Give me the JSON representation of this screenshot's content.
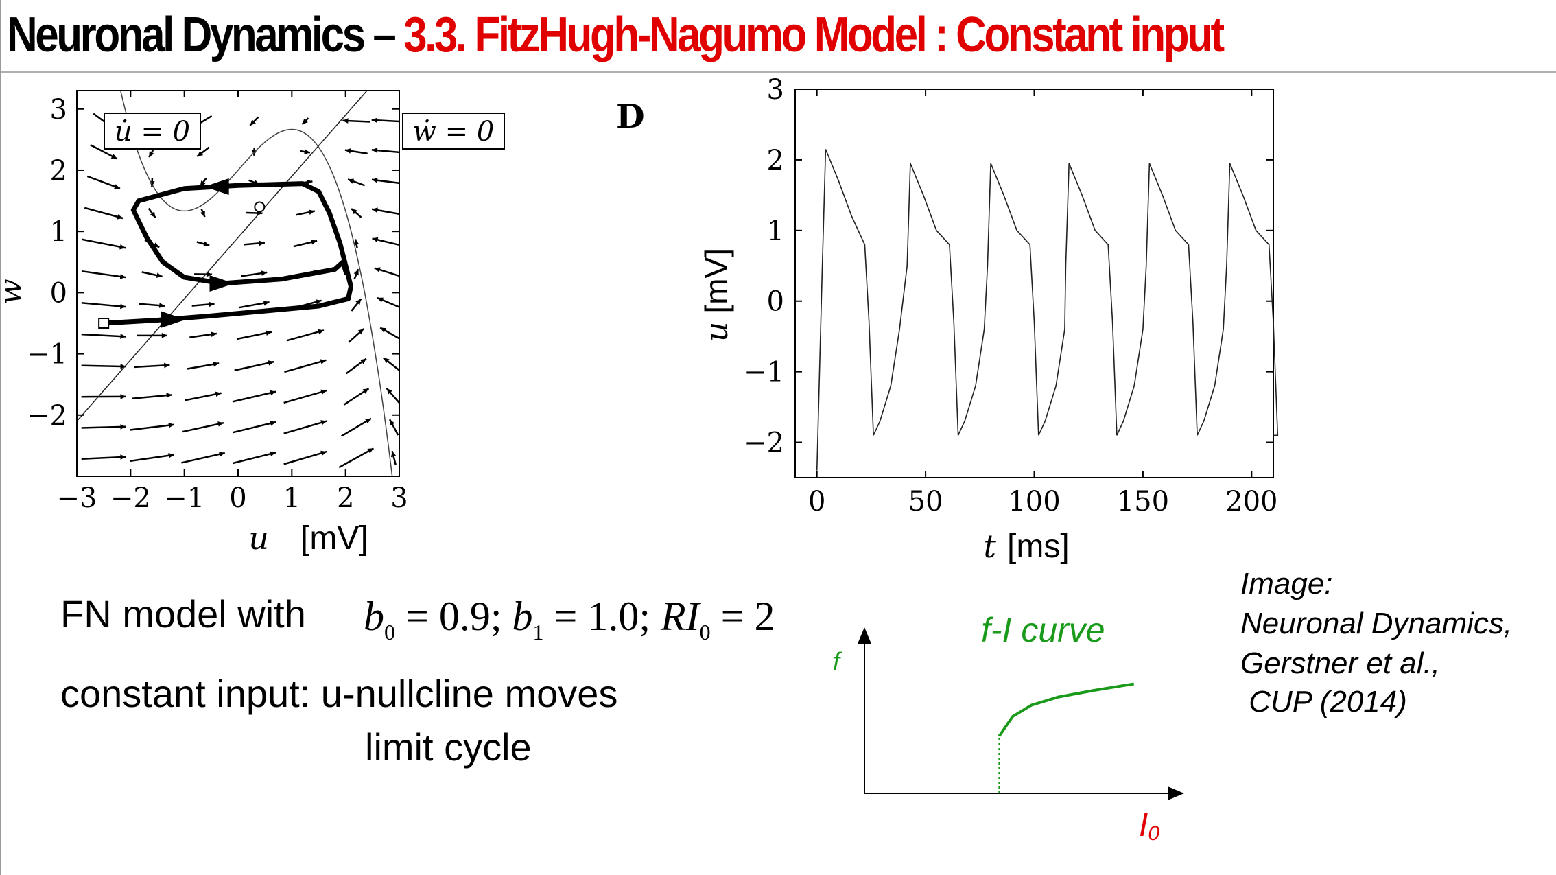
{
  "title": {
    "prefix": "Neuronal Dynamics – ",
    "section": "3.3.  FitzHugh-Nagumo Model : Constant input"
  },
  "colors": {
    "title_red": "#e00000",
    "curve_green": "#1a9a1a",
    "io_red": "#e00000"
  },
  "panel_label": "D",
  "body": {
    "line1_prefix": "FN model with",
    "line2": "constant input: u-nullcline moves",
    "line3": "limit cycle"
  },
  "image_credit": [
    "Image:",
    "Neuronal Dynamics,",
    "Gerstner et al.,",
    " CUP (2014)"
  ],
  "chart_data": [
    {
      "type": "line",
      "name": "phase-plane",
      "xlabel_unit": "[mV]",
      "xlim": [
        -3,
        3
      ],
      "ylim": [
        -3,
        3.3
      ],
      "xticks": [
        -3,
        -2,
        -1,
        0,
        1,
        2,
        3
      ],
      "yticks": [
        -2,
        -1,
        0,
        1,
        2,
        3
      ],
      "tick_labels_x": [
        "−3",
        "−2",
        "−1",
        "0",
        "1",
        "2",
        "3"
      ],
      "tick_labels_y": [
        "−2",
        "−1",
        "0",
        "1",
        "2",
        "3"
      ],
      "nullcline_labels": [
        "u̇ = 0",
        "ẇ = 0"
      ],
      "fixed_point": [
        0.4,
        1.4
      ],
      "initial_point": [
        -2.5,
        -0.5
      ],
      "limit_cycle": [
        [
          -2.5,
          -0.5
        ],
        [
          -1.5,
          -0.45
        ],
        [
          -0.5,
          -0.38
        ],
        [
          0.5,
          -0.3
        ],
        [
          1.5,
          -0.22
        ],
        [
          2.05,
          -0.1
        ],
        [
          2.1,
          0.1
        ],
        [
          2.0,
          0.45
        ],
        [
          1.9,
          0.8
        ],
        [
          1.7,
          1.3
        ],
        [
          1.5,
          1.65
        ],
        [
          1.2,
          1.78
        ],
        [
          0,
          1.75
        ],
        [
          -1,
          1.7
        ],
        [
          -1.85,
          1.5
        ],
        [
          -1.95,
          1.35
        ],
        [
          -1.7,
          0.9
        ],
        [
          -1.4,
          0.5
        ],
        [
          -1.0,
          0.25
        ],
        [
          -0.3,
          0.15
        ],
        [
          0.8,
          0.22
        ],
        [
          1.8,
          0.38
        ],
        [
          1.95,
          0.5
        ],
        [
          2.02,
          0.3
        ]
      ],
      "grid": false
    },
    {
      "type": "line",
      "name": "voltage-trace",
      "xlabel_unit": "[ms]",
      "ylabel_unit": "[mV]",
      "xlim": [
        -10,
        210
      ],
      "ylim": [
        -2.5,
        3
      ],
      "xticks": [
        0,
        50,
        100,
        150,
        200
      ],
      "yticks": [
        -2,
        -1,
        0,
        1,
        2,
        3
      ],
      "tick_labels_x": [
        "0",
        "50",
        "100",
        "150",
        "200"
      ],
      "tick_labels_y": [
        "−2",
        "−1",
        "0",
        "1",
        "2",
        "3"
      ],
      "spike_times": [
        4,
        43,
        80,
        116,
        153,
        190
      ],
      "peak_values": [
        2.15,
        1.95,
        1.95,
        1.95,
        1.95,
        1.95
      ],
      "trough_value": -1.9,
      "grid": false
    },
    {
      "type": "line",
      "name": "f-I curve",
      "title": "f-I curve",
      "ylabel": "f",
      "xlabel": "I",
      "xlabel_subscript": "0",
      "curve": [
        [
          0.5,
          0.35
        ],
        [
          0.55,
          0.47
        ],
        [
          0.62,
          0.54
        ],
        [
          0.72,
          0.59
        ],
        [
          0.85,
          0.63
        ],
        [
          1.0,
          0.67
        ]
      ],
      "threshold": 0.5
    }
  ]
}
